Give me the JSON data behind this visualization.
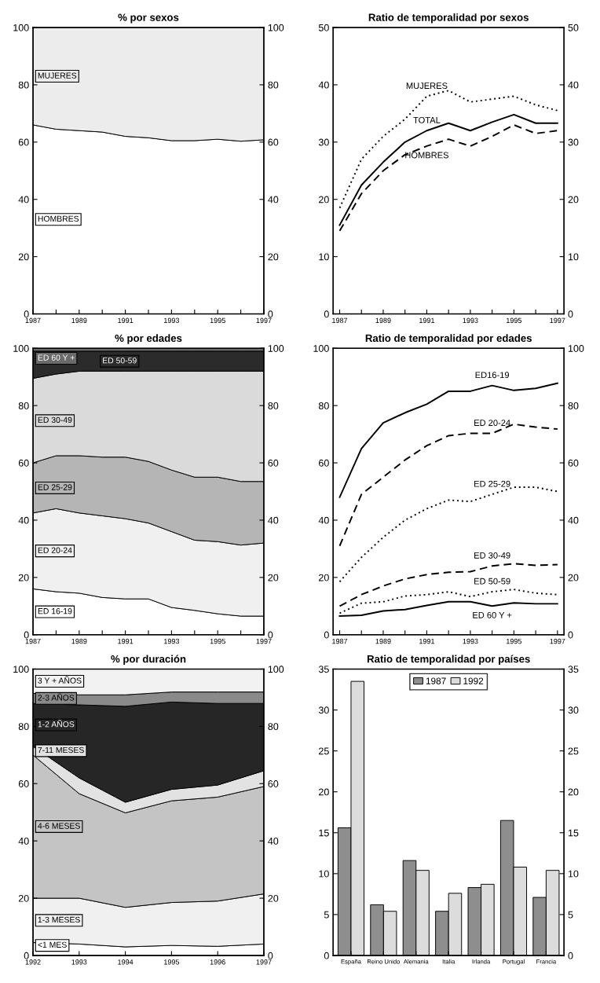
{
  "chart_data": [
    {
      "type": "area",
      "stacked": true,
      "title": "% por sexos",
      "x": [
        1987,
        1988,
        1989,
        1990,
        1991,
        1992,
        1993,
        1994,
        1995,
        1996,
        1997
      ],
      "series": [
        {
          "name": "HOMBRES",
          "color": "#ffffff",
          "values": [
            66,
            64.5,
            64,
            63.5,
            62,
            61.5,
            60.5,
            60.5,
            61,
            60.3,
            60.8
          ]
        },
        {
          "name": "MUJERES",
          "color": "#ececec",
          "values": [
            34,
            35.5,
            36,
            36.5,
            38,
            38.5,
            39.5,
            39.5,
            39,
            39.7,
            39.2
          ]
        }
      ],
      "xlim": [
        1987,
        1997
      ],
      "xticks": [
        1987,
        {
          "value": 1988,
          "label": null
        },
        1989,
        {
          "value": 1990,
          "label": null
        },
        1991,
        {
          "value": 1992,
          "label": null
        },
        1993,
        {
          "value": 1994,
          "label": null
        },
        1995,
        {
          "value": 1996,
          "label": null
        },
        1997
      ],
      "ylim": [
        0,
        100
      ],
      "yticks": [
        0,
        20,
        40,
        60,
        80,
        100
      ],
      "y2lim": [
        0,
        100
      ],
      "y2ticks": [
        0,
        20,
        40,
        60,
        80,
        100
      ],
      "legend": false
    },
    {
      "type": "line",
      "title": "Ratio de temporalidad por sexos",
      "x": [
        1987,
        1988,
        1989,
        1990,
        1991,
        1992,
        1993,
        1994,
        1995,
        1996,
        1997
      ],
      "series": [
        {
          "name": "MUJERES",
          "color": "#000000",
          "line_style": "dotted",
          "values": [
            18.5,
            27,
            31,
            34,
            38,
            39,
            37,
            37.5,
            38,
            36.5,
            35.5
          ]
        },
        {
          "name": "TOTAL",
          "color": "#000000",
          "line_style": "solid",
          "values": [
            15.5,
            22.5,
            26.5,
            30,
            32,
            33.3,
            32,
            33.5,
            34.8,
            33.3,
            33.3
          ]
        },
        {
          "name": "HOMBRES",
          "color": "#000000",
          "line_style": "dashed",
          "values": [
            14.5,
            21,
            25,
            27.8,
            29.3,
            30.5,
            29.3,
            31,
            33,
            31.5,
            32
          ]
        }
      ],
      "xlim": [
        1986.7,
        1997.3
      ],
      "xticks": [
        1987,
        {
          "value": 1988,
          "label": null
        },
        1989,
        {
          "value": 1990,
          "label": null
        },
        1991,
        {
          "value": 1992,
          "label": null
        },
        1993,
        {
          "value": 1994,
          "label": null
        },
        1995,
        {
          "value": 1996,
          "label": null
        },
        1997
      ],
      "ylim": [
        0,
        50
      ],
      "yticks": [
        0,
        10,
        20,
        30,
        40,
        50
      ],
      "y2lim": [
        0,
        50
      ],
      "y2ticks": [
        0,
        10,
        20,
        30,
        40,
        50
      ],
      "legend": false
    },
    {
      "type": "area",
      "stacked": true,
      "title": "% por edades",
      "x": [
        1987,
        1988,
        1989,
        1990,
        1991,
        1992,
        1993,
        1994,
        1995,
        1996,
        1997
      ],
      "series": [
        {
          "name": "ED 16-19",
          "color": "#ffffff",
          "values": [
            16,
            15,
            14.5,
            13,
            12.5,
            12.5,
            9.5,
            8.5,
            7.3,
            6.5,
            6.5
          ]
        },
        {
          "name": "ED 20-24",
          "color": "#f0f0f0",
          "values": [
            26.5,
            29,
            28,
            28.5,
            28,
            26.5,
            26.5,
            24.5,
            25.2,
            24.8,
            25.5
          ]
        },
        {
          "name": "ED 25-29",
          "color": "#b5b5b5",
          "values": [
            17.5,
            18.5,
            20,
            20.5,
            21.5,
            21.5,
            21.5,
            22,
            22.5,
            22.2,
            21.5
          ]
        },
        {
          "name": "ED 30-49",
          "color": "#dadada",
          "values": [
            29.5,
            28.5,
            29.5,
            30,
            30,
            31.5,
            34.5,
            37,
            37,
            38.5,
            38.5
          ]
        },
        {
          "name": "ED 50-59",
          "color": "#2b2b2b",
          "values": [
            9.5,
            8,
            7,
            7,
            7,
            7,
            7,
            7,
            7,
            7,
            7
          ]
        },
        {
          "name": "ED 60 Y +",
          "color": "#6a6a6a",
          "values": [
            1,
            1,
            1,
            1,
            1,
            1,
            1,
            1,
            1,
            1,
            1
          ]
        }
      ],
      "xlim": [
        1987,
        1997
      ],
      "xticks": [
        1987,
        {
          "value": 1988,
          "label": null
        },
        1989,
        {
          "value": 1990,
          "label": null
        },
        1991,
        {
          "value": 1992,
          "label": null
        },
        1993,
        {
          "value": 1994,
          "label": null
        },
        1995,
        {
          "value": 1996,
          "label": null
        },
        1997
      ],
      "ylim": [
        0,
        100
      ],
      "yticks": [
        0,
        20,
        40,
        60,
        80,
        100
      ],
      "y2lim": [
        0,
        100
      ],
      "y2ticks": [
        0,
        20,
        40,
        60,
        80,
        100
      ],
      "legend": false
    },
    {
      "type": "line",
      "title": "Ratio de temporalidad por edades",
      "x": [
        1987,
        1988,
        1989,
        1990,
        1991,
        1992,
        1993,
        1994,
        1995,
        1996,
        1997
      ],
      "series": [
        {
          "name": "ED16-19",
          "color": "#000000",
          "line_style": "solid",
          "values": [
            48,
            65,
            74,
            77.5,
            80.5,
            85,
            85,
            87,
            85.3,
            86,
            87.8
          ]
        },
        {
          "name": "ED 20-24",
          "color": "#000000",
          "line_style": "dashed",
          "values": [
            31,
            49,
            55,
            61,
            66,
            69.5,
            70.3,
            70.3,
            73.5,
            72.5,
            71.8
          ]
        },
        {
          "name": "ED 25-29",
          "color": "#000000",
          "line_style": "dotted",
          "values": [
            18.5,
            27,
            34,
            40,
            44,
            47,
            46.5,
            49,
            51.5,
            51.5,
            50
          ]
        },
        {
          "name": "ED 30-49",
          "color": "#000000",
          "line_style": "dashed",
          "values": [
            10,
            14,
            17,
            19.5,
            21,
            21.8,
            22,
            24,
            24.8,
            24.2,
            24.5
          ]
        },
        {
          "name": "ED 50-59",
          "color": "#000000",
          "line_style": "dotted",
          "values": [
            7.5,
            11,
            11.5,
            13.5,
            14,
            15,
            13.3,
            15,
            15.8,
            14.5,
            14
          ]
        },
        {
          "name": "ED 60 Y +",
          "color": "#000000",
          "line_style": "solid",
          "values": [
            6.5,
            6.8,
            8.3,
            8.8,
            10.2,
            11.5,
            11.5,
            10,
            11.1,
            10.8,
            10.8
          ]
        }
      ],
      "xlim": [
        1986.7,
        1997.3
      ],
      "xticks": [
        1987,
        {
          "value": 1988,
          "label": null
        },
        1989,
        {
          "value": 1990,
          "label": null
        },
        1991,
        {
          "value": 1992,
          "label": null
        },
        1993,
        {
          "value": 1994,
          "label": null
        },
        1995,
        {
          "value": 1996,
          "label": null
        },
        1997
      ],
      "ylim": [
        0,
        100
      ],
      "yticks": [
        0,
        20,
        40,
        60,
        80,
        100
      ],
      "y2lim": [
        0,
        100
      ],
      "y2ticks": [
        0,
        20,
        40,
        60,
        80,
        100
      ],
      "legend": false
    },
    {
      "type": "area",
      "stacked": true,
      "title": "% por duración",
      "x": [
        1992,
        1993,
        1994,
        1995,
        1996,
        1997
      ],
      "series": [
        {
          "name": "<1 MES",
          "color": "#ffffff",
          "values": [
            4.5,
            4,
            3,
            3.5,
            3.2,
            4
          ]
        },
        {
          "name": "1-3 MESES",
          "color": "#f0f0f0",
          "values": [
            15.5,
            16,
            13.8,
            15,
            15.8,
            17.5
          ]
        },
        {
          "name": "4-6 MESES",
          "color": "#c4c4c4",
          "values": [
            50,
            36.5,
            33,
            35.5,
            36.3,
            37.5
          ]
        },
        {
          "name": "7-11 MESES",
          "color": "#e2e2e2",
          "values": [
            3,
            5.5,
            3.7,
            4,
            4.2,
            5.5
          ]
        },
        {
          "name": "1-2 AÑOS",
          "color": "#262626",
          "values": [
            15,
            25.5,
            33.5,
            30.5,
            28.5,
            23.5
          ]
        },
        {
          "name": "2-3 AÑOS",
          "color": "#8a8a8a",
          "values": [
            3.5,
            3.5,
            4,
            3.5,
            4,
            4
          ]
        },
        {
          "name": "3 Y + AÑOS",
          "color": "#f2f2f2",
          "values": [
            8.5,
            9,
            9,
            8,
            8,
            8
          ]
        }
      ],
      "xlim": [
        1992,
        1997
      ],
      "xticks": [
        1992,
        1993,
        1994,
        1995,
        1996,
        1997
      ],
      "ylim": [
        0,
        100
      ],
      "yticks": [
        0,
        20,
        40,
        60,
        80,
        100
      ],
      "y2lim": [
        0,
        100
      ],
      "y2ticks": [
        0,
        20,
        40,
        60,
        80,
        100
      ],
      "legend": false
    },
    {
      "type": "bar",
      "title": "Ratio de temporalidad por países",
      "categories": [
        "España",
        "Reino Unido",
        "Alemania",
        "Italia",
        "Irlanda",
        "Portugal",
        "Francia"
      ],
      "series": [
        {
          "name": "1987",
          "color": "#8e8e8e",
          "values": [
            15.6,
            6.2,
            11.6,
            5.4,
            8.3,
            16.5,
            7.1
          ]
        },
        {
          "name": "1992",
          "color": "#dcdcdc",
          "values": [
            33.5,
            5.4,
            10.4,
            7.6,
            8.7,
            10.8,
            10.4
          ]
        }
      ],
      "ylim": [
        0,
        35
      ],
      "yticks": [
        0,
        5,
        10,
        15,
        20,
        25,
        30,
        35
      ],
      "y2lim": [
        0,
        35
      ],
      "y2ticks": [
        0,
        5,
        10,
        15,
        20,
        25,
        30,
        35
      ],
      "legend": "top"
    }
  ]
}
